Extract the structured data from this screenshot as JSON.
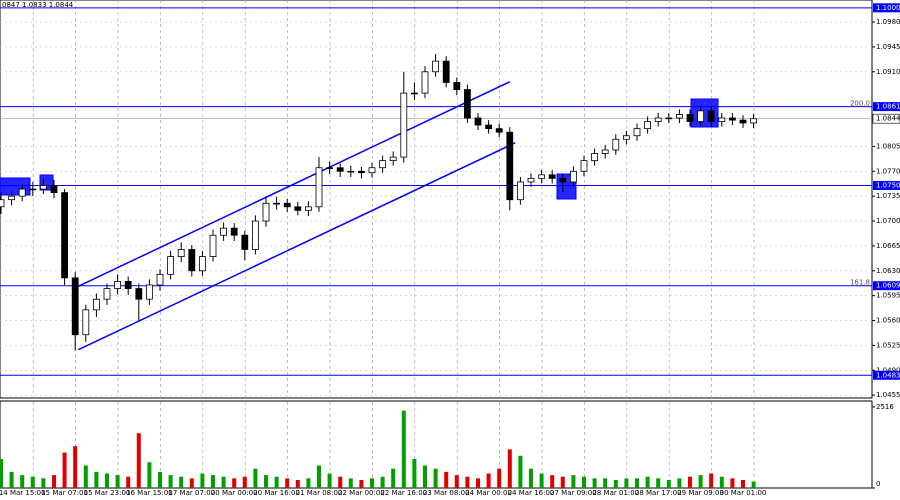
{
  "chart_data": {
    "type": "candlestick",
    "info": "0847 1.0833 1.0844",
    "categories": [
      null,
      null,
      "14 Mar 15:00",
      null,
      null,
      null,
      "15 Mar 07:00",
      null,
      null,
      null,
      "15 Mar 23:00",
      null,
      null,
      null,
      "16 Mar 15:00",
      null,
      null,
      null,
      "17 Mar 07:00",
      null,
      null,
      null,
      "20 Mar 00:00",
      null,
      null,
      null,
      "20 Mar 16:00",
      null,
      null,
      null,
      "21 Mar 08:00",
      null,
      null,
      null,
      "22 Mar 00:00",
      null,
      null,
      null,
      "22 Mar 16:00",
      null,
      null,
      null,
      "23 Mar 08:00",
      null,
      null,
      null,
      "24 Mar 00:00",
      null,
      null,
      null,
      "24 Mar 16:00",
      null,
      null,
      null,
      "27 Mar 09:00",
      null,
      null,
      null,
      "28 Mar 01:00",
      null,
      null,
      null,
      "28 Mar 17:00",
      null,
      null,
      null,
      "29 Mar 09:00",
      null,
      null,
      null,
      "30 Mar 01:00",
      null
    ],
    "open": [
      1.072,
      1.073,
      1.0735,
      1.0745,
      1.0745,
      1.075,
      1.074,
      1.062,
      1.054,
      1.0575,
      1.059,
      1.0605,
      1.0615,
      1.0605,
      1.059,
      1.061,
      1.0625,
      1.065,
      1.066,
      1.063,
      1.065,
      1.068,
      1.069,
      1.068,
      1.066,
      1.07,
      1.0725,
      1.0725,
      1.072,
      1.0715,
      1.072,
      1.0775,
      1.0775,
      1.077,
      1.077,
      1.0768,
      1.0775,
      1.0785,
      1.079,
      1.088,
      1.088,
      1.091,
      1.0925,
      1.0895,
      1.0885,
      1.0845,
      1.0835,
      1.083,
      1.0825,
      1.073,
      1.0755,
      1.076,
      1.0765,
      1.076,
      1.0755,
      1.077,
      1.0785,
      1.0795,
      1.08,
      1.0815,
      1.082,
      1.083,
      1.084,
      1.0845,
      1.0845,
      1.085,
      1.084,
      1.0855,
      1.084,
      1.0845,
      1.0842,
      1.0838
    ],
    "high": [
      1.074,
      1.0742,
      1.0752,
      1.0755,
      1.076,
      1.0758,
      1.0745,
      1.0628,
      1.0582,
      1.0598,
      1.0612,
      1.0625,
      1.0622,
      1.0612,
      1.0618,
      1.0632,
      1.0658,
      1.067,
      1.0666,
      1.0658,
      1.0688,
      1.0698,
      1.0697,
      1.0686,
      1.0708,
      1.0733,
      1.0734,
      1.0731,
      1.0727,
      1.0728,
      1.079,
      1.0784,
      1.0781,
      1.0778,
      1.0776,
      1.0782,
      1.0792,
      1.0798,
      1.091,
      1.0895,
      1.0918,
      1.0935,
      1.0932,
      1.0902,
      1.0892,
      1.0852,
      1.0842,
      1.0837,
      1.0832,
      1.0762,
      1.0767,
      1.0772,
      1.0772,
      1.0767,
      1.0777,
      1.0792,
      1.0802,
      1.0807,
      1.0822,
      1.0827,
      1.0837,
      1.0847,
      1.0852,
      1.0852,
      1.0857,
      1.0857,
      1.0862,
      1.0862,
      1.0852,
      1.0852,
      1.0849,
      1.0851
    ],
    "low": [
      1.071,
      1.0722,
      1.0728,
      1.0735,
      1.0738,
      1.0732,
      1.061,
      1.0518,
      1.053,
      1.0565,
      1.0582,
      1.0597,
      1.0596,
      1.056,
      1.0582,
      1.0602,
      1.0618,
      1.0642,
      1.0622,
      1.0623,
      1.0643,
      1.0672,
      1.0672,
      1.0645,
      1.0653,
      1.0692,
      1.0716,
      1.0713,
      1.0708,
      1.0707,
      1.0713,
      1.0766,
      1.0762,
      1.0762,
      1.076,
      1.0761,
      1.0768,
      1.0778,
      1.0782,
      1.087,
      1.0873,
      1.0903,
      1.0888,
      1.0877,
      1.0838,
      1.0828,
      1.0823,
      1.0818,
      1.0715,
      1.0723,
      1.0748,
      1.0753,
      1.0753,
      1.074,
      1.0748,
      1.0763,
      1.0778,
      1.0788,
      1.0793,
      1.0808,
      1.0813,
      1.0823,
      1.0833,
      1.0838,
      1.0838,
      1.0833,
      1.0833,
      1.0833,
      1.0833,
      1.0835,
      1.0831,
      1.0831
    ],
    "close": [
      1.073,
      1.0735,
      1.0745,
      1.0745,
      1.075,
      1.074,
      1.062,
      1.054,
      1.0575,
      1.059,
      1.0605,
      1.0615,
      1.0605,
      1.059,
      1.061,
      1.0625,
      1.065,
      1.066,
      1.063,
      1.065,
      1.068,
      1.069,
      1.068,
      1.066,
      1.07,
      1.0725,
      1.0725,
      1.072,
      1.0715,
      1.072,
      1.0775,
      1.0775,
      1.077,
      1.077,
      1.0768,
      1.0775,
      1.0785,
      1.079,
      1.088,
      1.088,
      1.091,
      1.0925,
      1.0895,
      1.0885,
      1.0845,
      1.0835,
      1.083,
      1.0825,
      1.073,
      1.0755,
      1.076,
      1.0765,
      1.076,
      1.0755,
      1.077,
      1.0785,
      1.0795,
      1.08,
      1.0815,
      1.082,
      1.083,
      1.084,
      1.0845,
      1.0845,
      1.085,
      1.084,
      1.0855,
      1.084,
      1.0845,
      1.0842,
      1.0838,
      1.0844
    ],
    "ylim": [
      1.0451,
      1.1011
    ],
    "yticks": [
      {
        "value": 1.098,
        "label": "1.0980"
      },
      {
        "value": 1.0945,
        "label": "1.0945"
      },
      {
        "value": 1.091,
        "label": "1.0910"
      },
      {
        "value": 1.0805,
        "label": "1.0805"
      },
      {
        "value": 1.077,
        "label": "1.0770"
      },
      {
        "value": 1.0735,
        "label": "1.0735"
      },
      {
        "value": 1.07,
        "label": "1.0700"
      },
      {
        "value": 1.0665,
        "label": "1.0665"
      },
      {
        "value": 1.063,
        "label": "1.0630"
      },
      {
        "value": 1.0595,
        "label": "1.0595"
      },
      {
        "value": 1.056,
        "label": "1.0560"
      },
      {
        "value": 1.0525,
        "label": "1.0525"
      },
      {
        "value": 1.049,
        "label": "1.0490"
      },
      {
        "value": 1.0455,
        "label": "1.0455"
      }
    ],
    "grid": true,
    "up_color": "#ffffff",
    "down_color": "#000000",
    "levels": [
      {
        "value": 1.1,
        "label": "1.1000"
      },
      {
        "value": 1.0861,
        "label": "1.0861",
        "note": "200.0"
      },
      {
        "value": 1.075,
        "label": "1.0750"
      },
      {
        "value": 1.0609,
        "label": "1.0609",
        "note": "161.8"
      },
      {
        "value": 1.0483,
        "label": "1.0483"
      }
    ],
    "level_color": "#0000ff",
    "current": {
      "value": 1.0844,
      "label": "1.0844"
    },
    "trendlines": [
      {
        "x": [
          6.7,
          48.0
        ],
        "y": [
          1.0604,
          1.0896
        ]
      },
      {
        "x": [
          7.3,
          48.5
        ],
        "y": [
          1.0519,
          1.081
        ]
      }
    ],
    "volume": {
      "values": [
        900,
        500,
        400,
        350,
        300,
        400,
        1100,
        1300,
        700,
        500,
        450,
        400,
        350,
        1700,
        800,
        500,
        400,
        350,
        300,
        450,
        400,
        350,
        300,
        350,
        600,
        400,
        350,
        300,
        250,
        300,
        700,
        450,
        350,
        300,
        250,
        300,
        350,
        600,
        2400,
        900,
        700,
        600,
        500,
        400,
        350,
        300,
        450,
        600,
        1200,
        1000,
        600,
        450,
        400,
        350,
        400,
        350,
        300,
        300,
        250,
        300,
        300,
        350,
        300,
        250,
        300,
        350,
        400,
        450,
        350,
        300,
        250,
        200
      ],
      "ylim": [
        0,
        2700
      ],
      "yticks": [
        0,
        2516
      ],
      "up_color": "#00a000",
      "down_color": "#e00000"
    }
  }
}
